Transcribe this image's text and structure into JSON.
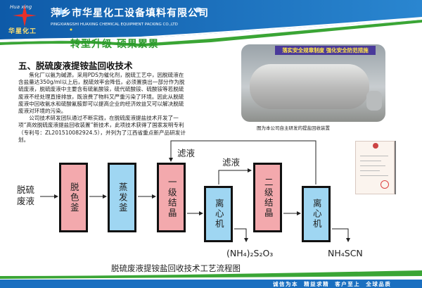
{
  "header": {
    "logo_text": "华星化工",
    "logo_script": "Hua xing",
    "company_name": "萍乡市华星化工设备填料有限公司",
    "company_name_en": "PINGXIANGSHI HUAXING CHEMICAL EQUIPMENT PACKING CO.,LTD",
    "slogan": "转型升级  硕果累累"
  },
  "article": {
    "title": "五、脱硫废液提铵盐回收技术",
    "paragraphs": [
      "焦化厂以氨为碱源，采用PDS为催化剂，脱硫工艺中，因脱硫液在含盐量达350g/ml以上后，脱硫效率会降低，必须置换出一部分作为脱硫废液，脱硫废液中主要含有硫氰酸铵，硫代硫酸铵、硫酸铵等若脱硫废液不经处理直接排放，既浪费了物料又严重污染了环境。因此从脱硫废液中回收氨水和硫酸氰胺即可以提高企业的经济效益又可以解决脱硫废液对环境的污染。",
      "公司技术研发团队通过不断实践，在脱硫废液提盐技术开发了一项“高效脱硫废液提盐回收装置”新技术，此项技术获得了国家发明专利（专利号：ZL201510082924.5），并列为了江西省重点新产品研发计划。"
    ]
  },
  "photo": {
    "banner": "落实安全规章制度  强化安全防范措施",
    "caption": "图为本公司自主研发的提盐回收装置"
  },
  "flow": {
    "input": "脱硫废液",
    "steps": [
      "脱色釜",
      "蒸发釜",
      "一级结晶",
      "离心机",
      "二级结晶",
      "离心机"
    ],
    "filtrate_1": "滤液",
    "filtrate_2": "滤液",
    "output_1": "(NH₄)₂S₂O₃",
    "output_2": "NH₄SCN",
    "caption": "脱硫废液提铵盐回收技术工艺流程图"
  },
  "footer": {
    "motto": "诚信为本  精益求精  客户至上  全球品质"
  },
  "colors": {
    "header_blue": "#1a6fc0",
    "accent_green": "#3aa535",
    "box_pink": "#f3a9ad",
    "box_blue": "#9fd6f2"
  }
}
